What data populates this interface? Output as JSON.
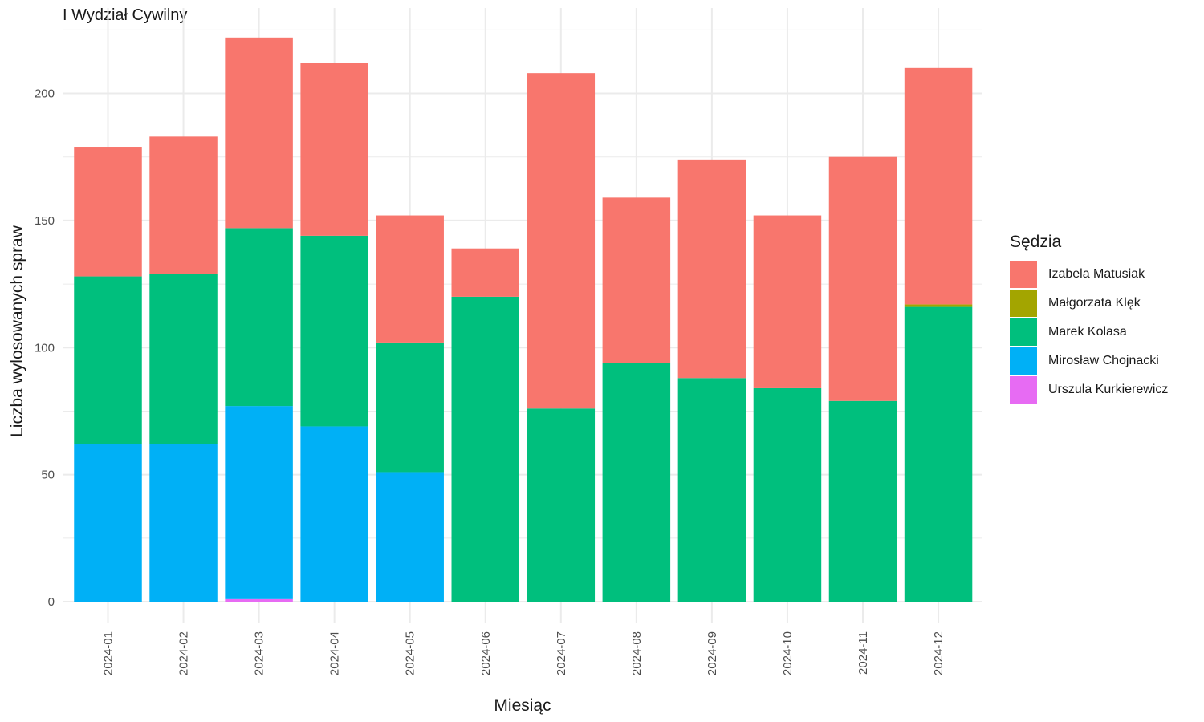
{
  "chart_data": {
    "type": "bar",
    "stacked": true,
    "facet_title": "I Wydział Cywilny",
    "xlabel": "Miesiąc",
    "ylabel": "Liczba wylosowanych spraw",
    "ylim": [
      0,
      225
    ],
    "yticks": [
      0,
      50,
      100,
      150,
      200
    ],
    "grid": true,
    "legend_title": "Sędzia",
    "legend_position": "right",
    "categories": [
      "2024-01",
      "2024-02",
      "2024-03",
      "2024-04",
      "2024-05",
      "2024-06",
      "2024-07",
      "2024-08",
      "2024-09",
      "2024-10",
      "2024-11",
      "2024-12"
    ],
    "series": [
      {
        "name": "Urszula Kurkierewicz",
        "color": "#E76BF3",
        "values": [
          0,
          0,
          1,
          0,
          0,
          0,
          0,
          0,
          0,
          0,
          0,
          0
        ]
      },
      {
        "name": "Mirosław Chojnacki",
        "color": "#00B0F6",
        "values": [
          62,
          62,
          76,
          69,
          51,
          0,
          0,
          0,
          0,
          0,
          0,
          0
        ]
      },
      {
        "name": "Marek Kolasa",
        "color": "#00BF7D",
        "values": [
          66,
          67,
          70,
          75,
          51,
          120,
          76,
          94,
          88,
          84,
          79,
          116
        ]
      },
      {
        "name": "Małgorzata Klęk",
        "color": "#A3A500",
        "values": [
          0,
          0,
          0,
          0,
          0,
          0,
          0,
          0,
          0,
          0,
          0,
          1
        ]
      },
      {
        "name": "Izabela Matusiak",
        "color": "#F8766D",
        "values": [
          51,
          54,
          75,
          68,
          50,
          19,
          132,
          65,
          86,
          68,
          96,
          93
        ]
      }
    ],
    "legend_order": [
      "Izabela Matusiak",
      "Małgorzata Klęk",
      "Marek Kolasa",
      "Mirosław Chojnacki",
      "Urszula Kurkierewicz"
    ]
  }
}
